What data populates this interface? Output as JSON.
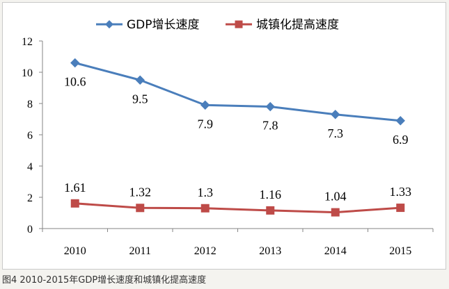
{
  "chart_data": {
    "type": "line",
    "categories": [
      "2010",
      "2011",
      "2012",
      "2013",
      "2014",
      "2015"
    ],
    "series": [
      {
        "name": "GDP增长速度",
        "values": [
          10.6,
          9.5,
          7.9,
          7.8,
          7.3,
          6.9
        ],
        "labels": [
          "10.6",
          "9.5",
          "7.9",
          "7.8",
          "7.3",
          "6.9"
        ],
        "color": "#4a7ebb",
        "marker": "diamond"
      },
      {
        "name": "城镇化提高速度",
        "values": [
          1.61,
          1.32,
          1.3,
          1.16,
          1.04,
          1.33
        ],
        "labels": [
          "1.61",
          "1.32",
          "1.3",
          "1.16",
          "1.04",
          "1.33"
        ],
        "color": "#be4b48",
        "marker": "square"
      }
    ],
    "yticks": [
      "0",
      "2",
      "4",
      "6",
      "8",
      "10",
      "12"
    ],
    "ylim": [
      0,
      12
    ],
    "grid": false,
    "legend_position": "top"
  },
  "caption": "图4  2010-2015年GDP增长速度和城镇化提高速度"
}
